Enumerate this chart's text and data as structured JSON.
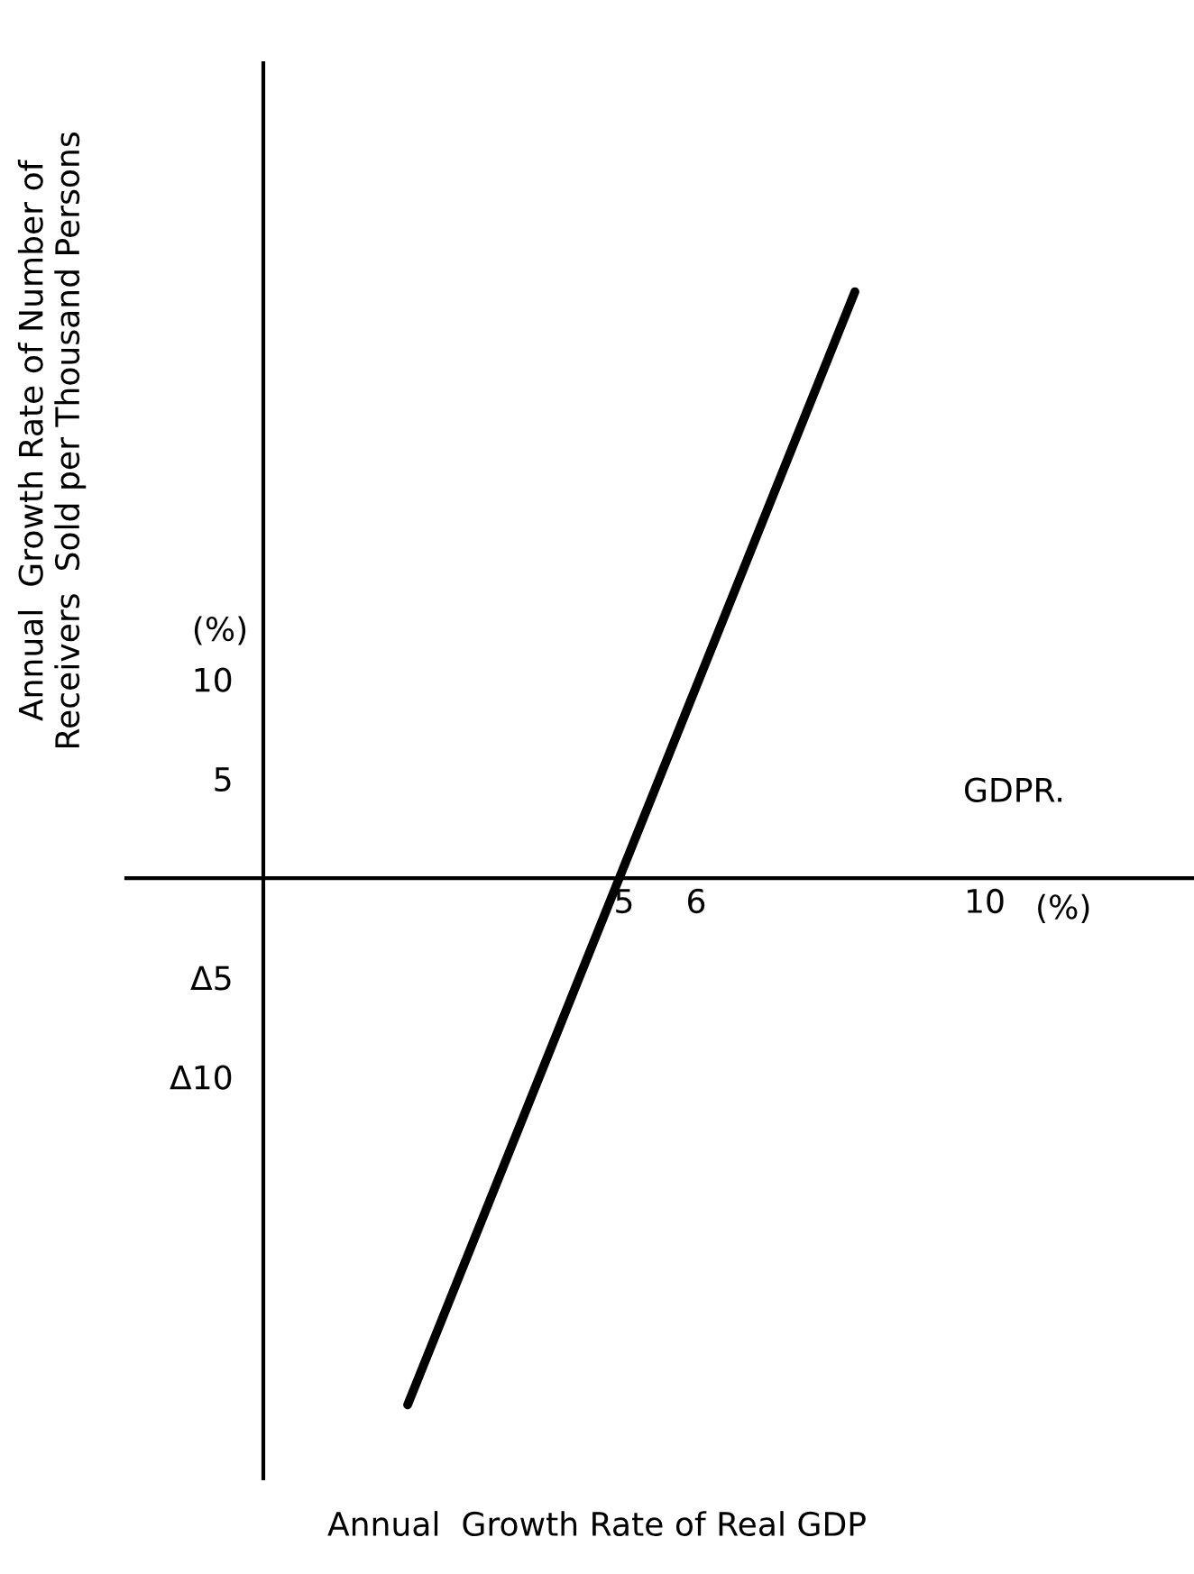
{
  "chart_data": {
    "type": "line",
    "xlabel": "Annual  Growth Rate of Real GDP",
    "ylabel": "Annual  Growth Rate of Number of\nReceivers  Sold per Thousand Persons",
    "x": [
      2.0,
      8.2
    ],
    "series": [
      {
        "color": "#000000",
        "values": [
          -26.5,
          29.5
        ]
      }
    ],
    "xlim": [
      -1.9,
      12.9
    ],
    "ylim": [
      -30.2,
      41
    ],
    "xticks": [
      5,
      6,
      10
    ],
    "yticks": [
      {
        "value": -10,
        "label": "Δ10"
      },
      {
        "value": -5,
        "label": "Δ5"
      },
      5,
      10
    ],
    "annotations": [
      "(%)",
      "(%)",
      "GDPR."
    ],
    "grid": false,
    "legend": false,
    "marker": "none",
    "line_style": "solid"
  }
}
